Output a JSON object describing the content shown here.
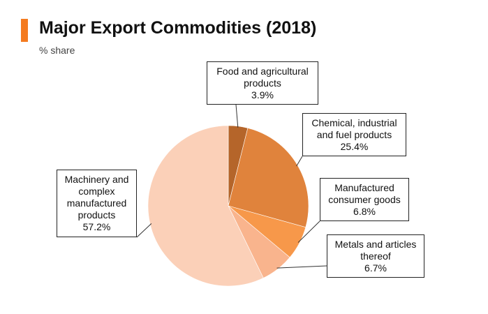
{
  "header": {
    "title": "Major Export Commodities (2018)",
    "subtitle": "% share"
  },
  "colors": {
    "accent": "#f47b20"
  },
  "chart_data": {
    "type": "pie",
    "title": "Major Export Commodities (2018)",
    "subtitle": "% share",
    "start": "12 o'clock",
    "direction": "clockwise",
    "slices": [
      {
        "label": "Food and agricultural products",
        "display_label": "Food and agricultural\nproducts",
        "value": 3.9,
        "value_text": "3.9%",
        "color": "#b5652a"
      },
      {
        "label": "Chemical, industrial and fuel products",
        "display_label": "Chemical, industrial\nand fuel products",
        "value": 25.4,
        "value_text": "25.4%",
        "color": "#e0833c"
      },
      {
        "label": "Manufactured consumer goods",
        "display_label": "Manufactured\nconsumer goods",
        "value": 6.8,
        "value_text": "6.8%",
        "color": "#f7984a"
      },
      {
        "label": "Metals and articles thereof",
        "display_label": "Metals and articles\nthereof",
        "value": 6.7,
        "value_text": "6.7%",
        "color": "#f9b48d"
      },
      {
        "label": "Machinery and complex manufactured products",
        "display_label": "Machinery and\ncomplex\nmanufactured\nproducts",
        "value": 57.2,
        "value_text": "57.2%",
        "color": "#fbd0b8"
      }
    ]
  }
}
